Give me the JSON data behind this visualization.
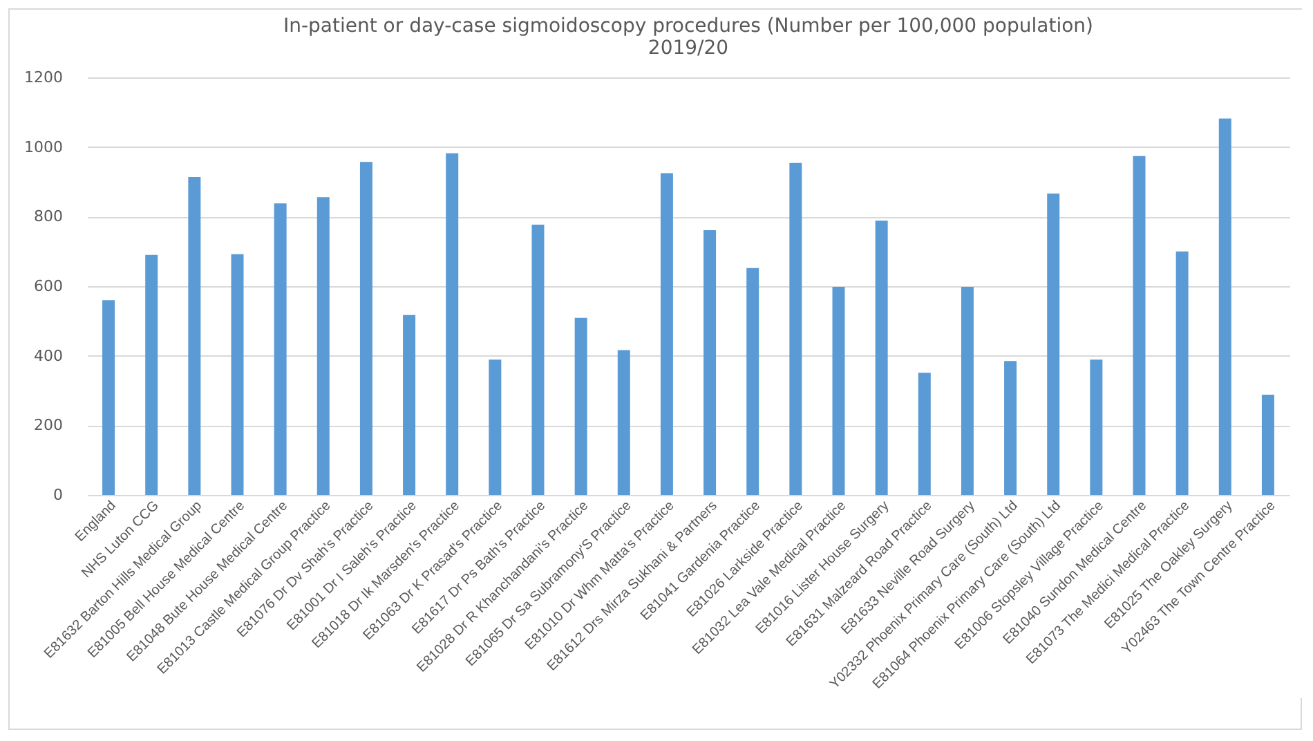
{
  "chart_data": {
    "type": "bar",
    "title": [
      "In-patient or day-case sigmoidoscopy procedures (Number per 100,000 population)",
      "2019/20"
    ],
    "categories": [
      "England",
      "NHS Luton CCG",
      "E81632 Barton Hills Medical Group",
      "E81005 Bell House Medical Centre",
      "E81048 Bute House Medical Centre",
      "E81013 Castle Medical Group Practice",
      "E81076 Dr Dv Shah's Practice",
      "E81001 Dr I Saleh's Practice",
      "E81018 Dr Ik Marsden's Practice",
      "E81063 Dr K Prasad's Practice",
      "E81617 Dr Ps Bath's Practice",
      "E81028 Dr R Khanchandani's Practice",
      "E81065 Dr Sa Subramony'S Practice",
      "E81010 Dr Whm Matta's Practice",
      "E81612 Drs Mirza Sukhani & Partners",
      "E81041 Gardenia Practice",
      "E81026 Larkside Practice",
      "E81032 Lea Vale Medical Practice",
      "E81016 Lister House Surgery",
      "E81631 Malzeard Road Practice",
      "E81633 Neville Road Surgery",
      "Y02332 Phoenix Primary Care (South) Ltd",
      "E81064 Phoenix Primary Care (South) Ltd",
      "E81006 Stopsley Village Practice",
      "E81040 Sundon Medical Centre",
      "E81073 The Medici Medical Practice",
      "E81025 The Oakley Surgery",
      "Y02463 The Town Centre Practice"
    ],
    "values": [
      560,
      690,
      914,
      692,
      838,
      856,
      957,
      517,
      982,
      389,
      777,
      509,
      416,
      925,
      761,
      652,
      954,
      598,
      788,
      351,
      598,
      385,
      866,
      389,
      974,
      700,
      1082,
      288
    ],
    "color": "#5b9bd5",
    "ylim": [
      0,
      1200
    ],
    "yticks": [
      0,
      200,
      400,
      600,
      800,
      1000,
      1200
    ],
    "grid": "y"
  }
}
